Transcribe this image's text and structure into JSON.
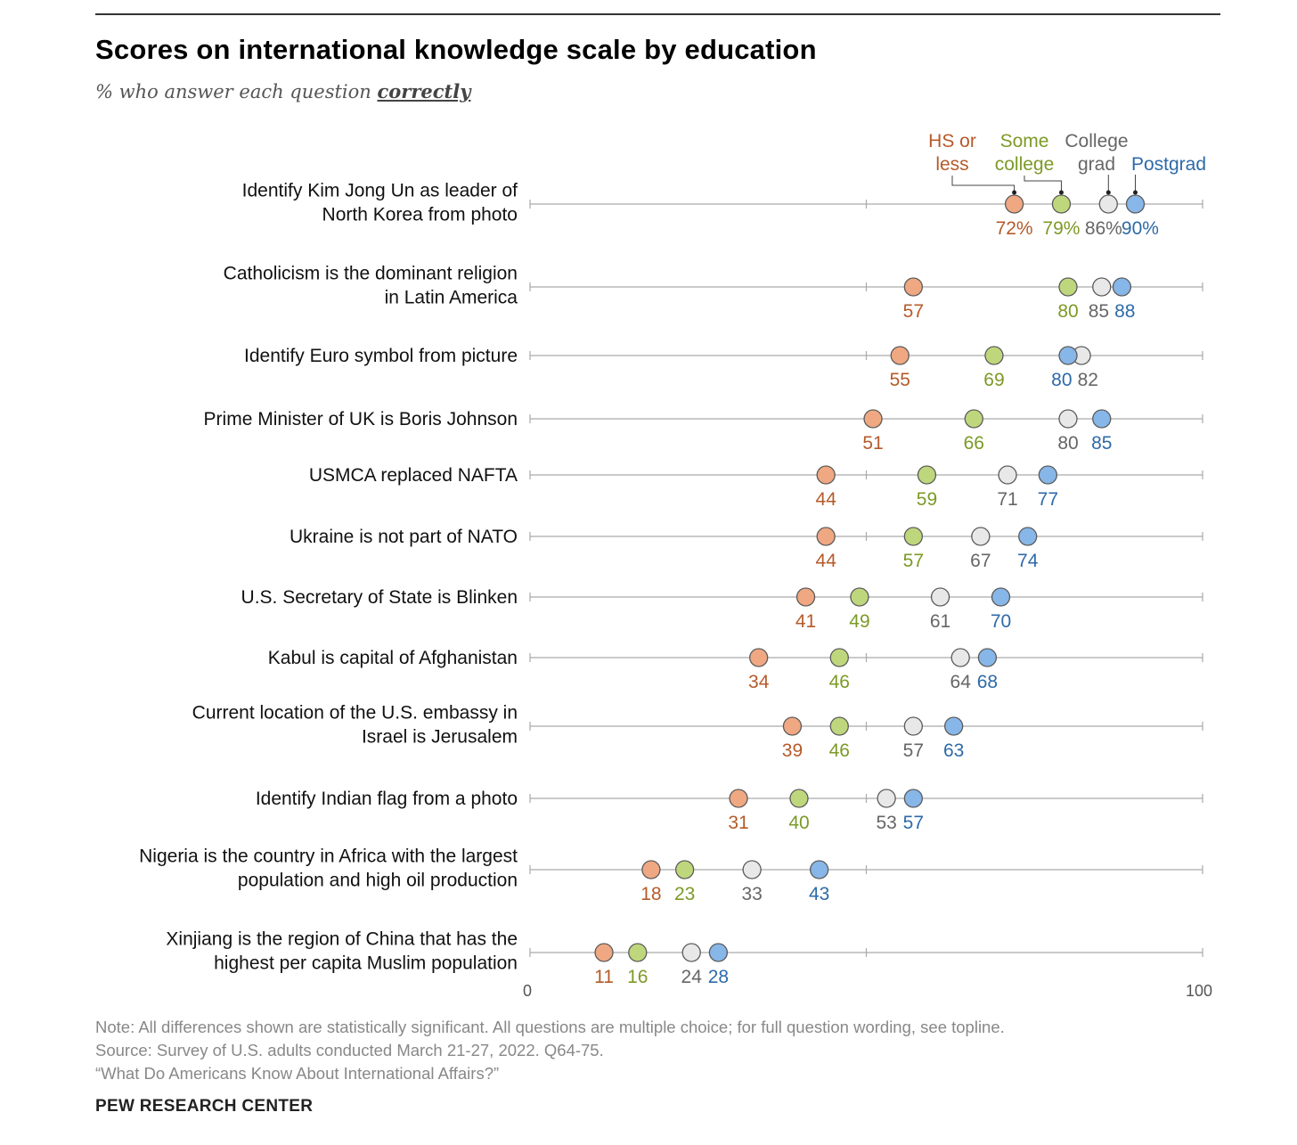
{
  "header": {
    "title": "Scores on international knowledge scale by education",
    "subtitle_prefix": "% who answer each question",
    "subtitle_emph": "correctly"
  },
  "footer": {
    "note": "Note: All differences shown are statistically significant. All questions are multiple choice; for full question wording, see topline.",
    "source": "Source: Survey of U.S. adults conducted March 21-27, 2022. Q64-75.",
    "report": "“What Do Americans Know About International Affairs?”",
    "brand": "PEW RESEARCH CENTER"
  },
  "chart_data": {
    "type": "dot",
    "title": "Scores on international knowledge scale by education",
    "subtitle": "% who answer each question correctly",
    "xlim": [
      0,
      100
    ],
    "x_ticks": [
      0,
      50,
      100
    ],
    "x_tick_labels": [
      "0",
      "",
      "100"
    ],
    "percent_first_row": true,
    "series": [
      {
        "name": "HS or less",
        "legend_lines": [
          "HS or",
          "less"
        ],
        "dot_color": "#EFA882",
        "text_color": "#B55A2A",
        "values": [
          72,
          57,
          55,
          51,
          44,
          44,
          41,
          34,
          39,
          31,
          18,
          11
        ]
      },
      {
        "name": "Some college",
        "legend_lines": [
          "Some",
          "college"
        ],
        "dot_color": "#BFD77C",
        "text_color": "#7C9A26",
        "values": [
          79,
          80,
          69,
          66,
          59,
          57,
          49,
          46,
          46,
          40,
          23,
          16
        ]
      },
      {
        "name": "College grad",
        "legend_lines": [
          "College",
          "grad"
        ],
        "dot_color": "#E8E8E8",
        "text_color": "#666666",
        "values": [
          86,
          85,
          82,
          80,
          71,
          67,
          61,
          64,
          57,
          53,
          33,
          24
        ]
      },
      {
        "name": "Postgrad",
        "legend_lines": [
          "Postgrad"
        ],
        "dot_color": "#87B6E8",
        "text_color": "#2E6AA8",
        "values": [
          90,
          88,
          80,
          85,
          77,
          74,
          70,
          68,
          63,
          57,
          43,
          28
        ]
      }
    ],
    "questions": [
      {
        "lines": [
          "Identify Kim Jong Un as leader of",
          "North Korea from photo"
        ]
      },
      {
        "lines": [
          "Catholicism is the dominant religion",
          "in Latin America"
        ]
      },
      {
        "lines": [
          "Identify Euro symbol from picture"
        ]
      },
      {
        "lines": [
          "Prime Minister of UK is Boris Johnson"
        ]
      },
      {
        "lines": [
          "USMCA replaced NAFTA"
        ]
      },
      {
        "lines": [
          "Ukraine is not part of NATO"
        ]
      },
      {
        "lines": [
          "U.S. Secretary of State is Blinken"
        ]
      },
      {
        "lines": [
          "Kabul is capital of Afghanistan"
        ]
      },
      {
        "lines": [
          "Current location of the U.S. embassy in",
          "Israel is Jerusalem"
        ]
      },
      {
        "lines": [
          "Identify Indian flag from a photo"
        ]
      },
      {
        "lines": [
          "Nigeria is the country in Africa with the largest",
          "population and high oil production"
        ]
      },
      {
        "lines": [
          "Xinjiang is the region of China that has the",
          "highest per capita Muslim population"
        ]
      }
    ]
  }
}
